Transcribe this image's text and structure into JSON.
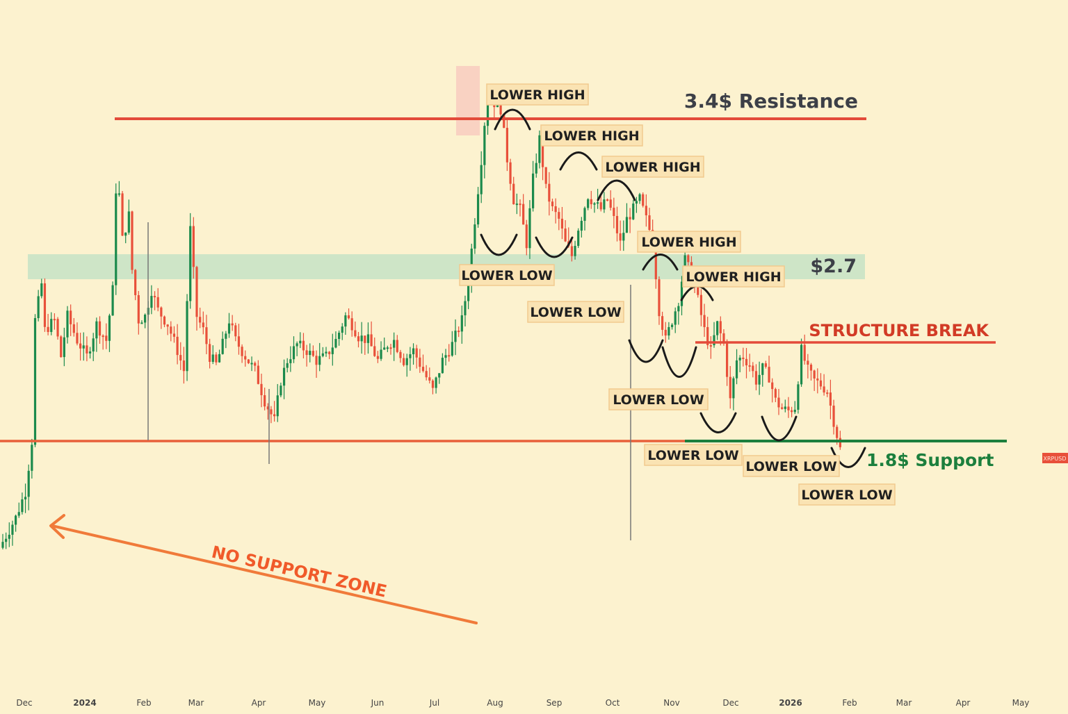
{
  "colors": {
    "background": "#fcf2cf",
    "up_candle": "#1b8a4c",
    "down_candle": "#e8503a",
    "resistance": "#e34b3a",
    "support": "#1c7f3d",
    "zone": "#bfe0c4",
    "no_support_arrow": "#f07a3a",
    "label_box": "#fae3b3"
  },
  "chart_data": {
    "type": "candlestick",
    "x_axis_labels": [
      "Dec",
      "2024",
      "Feb",
      "Mar",
      "Apr",
      "May",
      "Jun",
      "Jul",
      "Aug",
      "Sep",
      "Oct",
      "Nov",
      "Dec",
      "2026",
      "Feb",
      "Mar",
      "Apr",
      "May"
    ],
    "bold_x_labels": [
      "2024",
      "2026"
    ],
    "price_path": [
      [
        0,
        1.3
      ],
      [
        4,
        1.42
      ],
      [
        7,
        1.55
      ],
      [
        9,
        1.8
      ],
      [
        10,
        2.4
      ],
      [
        12,
        2.58
      ],
      [
        13,
        2.35
      ],
      [
        16,
        2.4
      ],
      [
        18,
        2.22
      ],
      [
        20,
        2.42
      ],
      [
        23,
        2.3
      ],
      [
        26,
        2.22
      ],
      [
        29,
        2.38
      ],
      [
        32,
        2.3
      ],
      [
        34,
        2.55
      ],
      [
        35,
        3.05
      ],
      [
        36,
        3.02
      ],
      [
        37,
        2.8
      ],
      [
        39,
        2.92
      ],
      [
        40,
        2.65
      ],
      [
        42,
        2.4
      ],
      [
        44,
        2.42
      ],
      [
        46,
        2.55
      ],
      [
        48,
        2.45
      ],
      [
        51,
        2.38
      ],
      [
        54,
        2.25
      ],
      [
        56,
        2.15
      ],
      [
        58,
        2.85
      ],
      [
        60,
        2.42
      ],
      [
        62,
        2.35
      ],
      [
        64,
        2.22
      ],
      [
        66,
        2.18
      ],
      [
        68,
        2.28
      ],
      [
        70,
        2.4
      ],
      [
        72,
        2.3
      ],
      [
        75,
        2.22
      ],
      [
        78,
        2.15
      ],
      [
        81,
        2.0
      ],
      [
        84,
        1.9
      ],
      [
        86,
        2.1
      ],
      [
        88,
        2.2
      ],
      [
        91,
        2.28
      ],
      [
        94,
        2.25
      ],
      [
        97,
        2.2
      ],
      [
        100,
        2.22
      ],
      [
        103,
        2.3
      ],
      [
        106,
        2.42
      ],
      [
        108,
        2.38
      ],
      [
        110,
        2.32
      ],
      [
        113,
        2.3
      ],
      [
        116,
        2.2
      ],
      [
        119,
        2.28
      ],
      [
        121,
        2.3
      ],
      [
        124,
        2.2
      ],
      [
        127,
        2.25
      ],
      [
        130,
        2.15
      ],
      [
        133,
        2.05
      ],
      [
        136,
        2.2
      ],
      [
        139,
        2.28
      ],
      [
        142,
        2.4
      ],
      [
        144,
        2.6
      ],
      [
        146,
        2.9
      ],
      [
        148,
        3.2
      ],
      [
        149,
        3.38
      ],
      [
        150,
        3.52
      ],
      [
        152,
        3.48
      ],
      [
        154,
        3.45
      ],
      [
        156,
        3.2
      ],
      [
        158,
        3.0
      ],
      [
        160,
        2.95
      ],
      [
        162,
        2.78
      ],
      [
        164,
        3.1
      ],
      [
        166,
        3.3
      ],
      [
        168,
        3.05
      ],
      [
        170,
        2.95
      ],
      [
        172,
        2.9
      ],
      [
        174,
        2.78
      ],
      [
        176,
        2.72
      ],
      [
        178,
        2.86
      ],
      [
        181,
        3.02
      ],
      [
        183,
        2.98
      ],
      [
        185,
        2.95
      ],
      [
        187,
        3.0
      ],
      [
        189,
        2.9
      ],
      [
        191,
        2.78
      ],
      [
        193,
        2.9
      ],
      [
        195,
        2.95
      ],
      [
        197,
        3.0
      ],
      [
        199,
        2.9
      ],
      [
        201,
        2.8
      ],
      [
        203,
        2.45
      ],
      [
        205,
        2.3
      ],
      [
        207,
        2.4
      ],
      [
        209,
        2.5
      ],
      [
        211,
        2.7
      ],
      [
        213,
        2.62
      ],
      [
        215,
        2.5
      ],
      [
        217,
        2.35
      ],
      [
        219,
        2.25
      ],
      [
        221,
        2.38
      ],
      [
        223,
        2.28
      ],
      [
        225,
        2.0
      ],
      [
        227,
        2.2
      ],
      [
        229,
        2.22
      ],
      [
        231,
        2.18
      ],
      [
        233,
        2.1
      ],
      [
        235,
        2.16
      ],
      [
        237,
        2.12
      ],
      [
        239,
        2.0
      ],
      [
        241,
        1.96
      ],
      [
        243,
        1.95
      ],
      [
        245,
        1.97
      ],
      [
        247,
        2.25
      ],
      [
        249,
        2.15
      ],
      [
        251,
        2.1
      ],
      [
        253,
        2.08
      ],
      [
        255,
        2.05
      ],
      [
        257,
        1.9
      ],
      [
        259,
        1.76
      ]
    ],
    "levels": [
      {
        "name": "resistance",
        "value": 3.4
      },
      {
        "name": "zone_2_7",
        "value": 2.7
      },
      {
        "name": "structure_break",
        "value": 2.4
      },
      {
        "name": "support",
        "value": 1.8
      }
    ]
  },
  "annotations": {
    "resistance_label": "3.4$ Resistance",
    "zone_label": "$2.7",
    "structure_break_label": "STRUCTURE BREAK",
    "support_label": "1.8$ Support",
    "no_support_label": "NO SUPPORT ZONE",
    "lower_high_1": "LOWER HIGH",
    "lower_high_2": "LOWER HIGH",
    "lower_high_3": "LOWER HIGH",
    "lower_high_4": "LOWER HIGH",
    "lower_high_5": "LOWER HIGH",
    "lower_low_1": "LOWER LOW",
    "lower_low_2": "LOWER LOW",
    "lower_low_3": "LOWER LOW",
    "lower_low_4": "LOWER LOW",
    "lower_low_5": "LOWER LOW",
    "lower_low_6": "LOWER LOW",
    "price_tag": "XRPUSD"
  }
}
